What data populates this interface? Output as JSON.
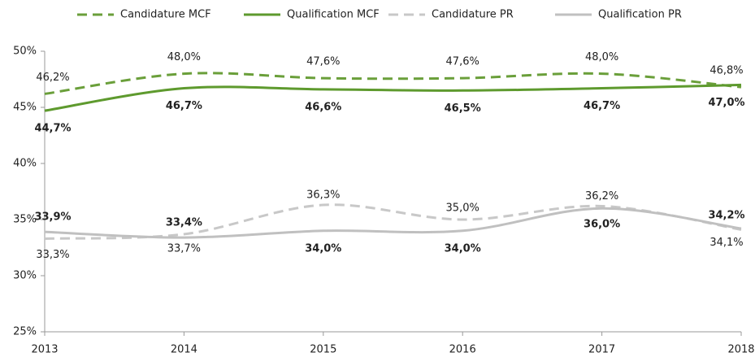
{
  "chart_data": {
    "type": "line",
    "x": [
      2013,
      2014,
      2015,
      2016,
      2017,
      2018
    ],
    "xlim": [
      2013,
      2018
    ],
    "xticks": [
      2013,
      2014,
      2015,
      2016,
      2017,
      2018
    ],
    "ylim": [
      25,
      50
    ],
    "yticks": [
      {
        "value": 25,
        "label": "25%"
      },
      {
        "value": 30,
        "label": "30%"
      },
      {
        "value": 35,
        "label": "35%"
      },
      {
        "value": 40,
        "label": "40%"
      },
      {
        "value": 45,
        "label": "45%"
      },
      {
        "value": 50,
        "label": "50%"
      }
    ],
    "legend": "top",
    "series": [
      {
        "name": "Candidature MCF",
        "color": "#6a9f3a",
        "dash": true,
        "values": [
          46.2,
          48.0,
          47.6,
          47.6,
          48.0,
          46.8
        ],
        "value_labels": [
          "46,2%",
          "48,0%",
          "47,6%",
          "47,6%",
          "48,0%",
          "46,8%"
        ]
      },
      {
        "name": "Qualification MCF",
        "color": "#5e9a2e",
        "dash": false,
        "values": [
          44.7,
          46.7,
          46.6,
          46.5,
          46.7,
          47.0
        ],
        "value_labels": [
          "44,7%",
          "46,7%",
          "46,6%",
          "46,5%",
          "46,7%",
          "47,0%"
        ]
      },
      {
        "name": "Candidature PR",
        "color": "#c8c8c8",
        "dash": true,
        "values": [
          33.3,
          33.7,
          36.3,
          35.0,
          36.2,
          34.1
        ],
        "value_labels": [
          "33,3%",
          "33,7%",
          "36,3%",
          "35,0%",
          "36,2%",
          "34,1%"
        ]
      },
      {
        "name": "Qualification PR",
        "color": "#c0c0c0",
        "dash": false,
        "values": [
          33.9,
          33.4,
          34.0,
          34.0,
          36.0,
          34.2
        ],
        "value_labels": [
          "33,9%",
          "33,4%",
          "34,0%",
          "34,0%",
          "36,0%",
          "34,2%"
        ]
      }
    ]
  }
}
